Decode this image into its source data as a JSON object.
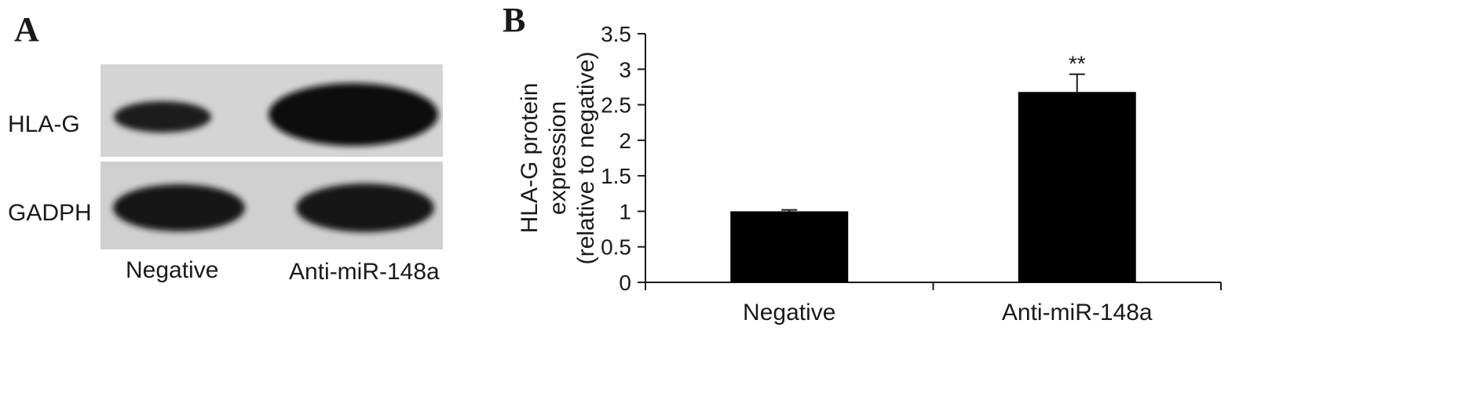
{
  "panel_a": {
    "letter": "A",
    "rows": [
      {
        "label": "HLA-G",
        "band_intensity": [
          0.35,
          1.0
        ]
      },
      {
        "label": "GADPH",
        "band_intensity": [
          0.9,
          0.9
        ]
      }
    ],
    "lanes": [
      "Negative",
      "Anti-miR-148a"
    ]
  },
  "panel_b": {
    "letter": "B"
  },
  "chart_data": {
    "type": "bar",
    "categories": [
      "Negative",
      "Anti-miR-148a"
    ],
    "values": [
      1.0,
      2.68
    ],
    "errors": [
      0.02,
      0.25
    ],
    "annotations": [
      "",
      "**"
    ],
    "title": "",
    "xlabel": "",
    "ylabel_lines": [
      "HLA-G protein",
      "expression",
      "(relative to negative)"
    ],
    "ylim": [
      0,
      3.5
    ],
    "yticks": [
      0,
      0.5,
      1,
      1.5,
      2,
      2.5,
      3,
      3.5
    ],
    "ytick_labels": [
      "0",
      "0.5",
      "1",
      "1.5",
      "2",
      "2.5",
      "3",
      "3.5"
    ],
    "bar_color": "#000000",
    "grid": false,
    "legend": "none"
  }
}
